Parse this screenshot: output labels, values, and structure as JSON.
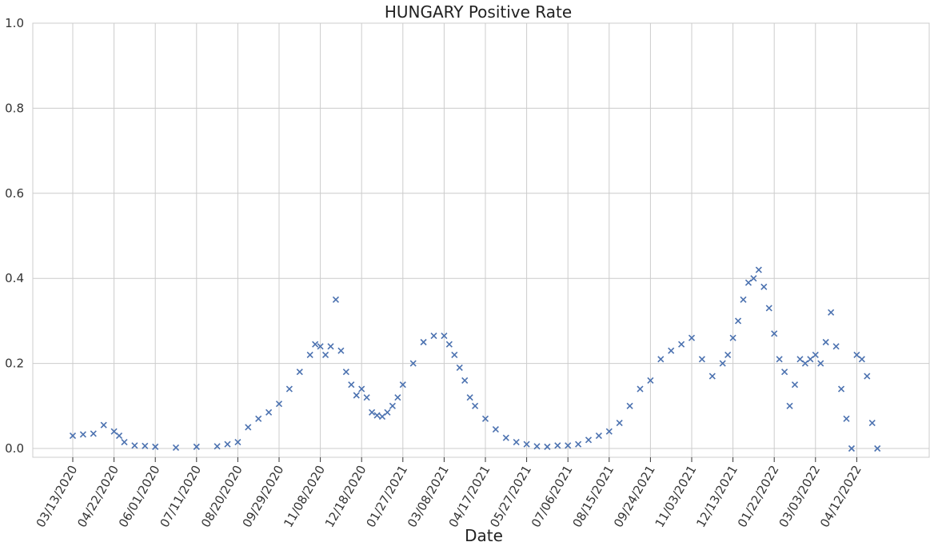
{
  "chart_data": {
    "type": "scatter",
    "title": "HUNGARY   Positive Rate",
    "xlabel": "Date",
    "ylabel": "",
    "ylim": [
      0,
      1.0
    ],
    "yticks": [
      "0.0",
      "0.2",
      "0.4",
      "0.6",
      "0.8",
      "1.0"
    ],
    "xticks": [
      "03/13/2020",
      "04/22/2020",
      "06/01/2020",
      "07/11/2020",
      "08/20/2020",
      "09/29/2020",
      "11/08/2020",
      "12/18/2020",
      "01/27/2021",
      "03/08/2021",
      "04/17/2021",
      "05/27/2021",
      "07/06/2021",
      "08/15/2021",
      "09/24/2021",
      "11/03/2021",
      "12/13/2021",
      "01/22/2022",
      "03/03/2022",
      "04/12/2022"
    ],
    "grid": true,
    "marker": "x",
    "color": "#4c72b0",
    "x": [
      "03/13/2020",
      "03/23/2020",
      "04/02/2020",
      "04/12/2020",
      "04/22/2020",
      "04/27/2020",
      "05/02/2020",
      "05/12/2020",
      "05/22/2020",
      "06/01/2020",
      "06/21/2020",
      "07/11/2020",
      "07/31/2020",
      "08/10/2020",
      "08/20/2020",
      "08/30/2020",
      "09/09/2020",
      "09/19/2020",
      "09/29/2020",
      "10/09/2020",
      "10/19/2020",
      "10/29/2020",
      "11/03/2020",
      "11/08/2020",
      "11/13/2020",
      "11/18/2020",
      "11/23/2020",
      "11/28/2020",
      "12/03/2020",
      "12/08/2020",
      "12/13/2020",
      "12/18/2020",
      "12/23/2020",
      "12/28/2020",
      "01/02/2021",
      "01/07/2021",
      "01/12/2021",
      "01/17/2021",
      "01/22/2021",
      "01/27/2021",
      "02/06/2021",
      "02/16/2021",
      "02/26/2021",
      "03/08/2021",
      "03/13/2021",
      "03/18/2021",
      "03/23/2021",
      "03/28/2021",
      "04/02/2021",
      "04/07/2021",
      "04/17/2021",
      "04/27/2021",
      "05/07/2021",
      "05/17/2021",
      "05/27/2021",
      "06/06/2021",
      "06/16/2021",
      "06/26/2021",
      "07/06/2021",
      "07/16/2021",
      "07/26/2021",
      "08/05/2021",
      "08/15/2021",
      "08/25/2021",
      "09/04/2021",
      "09/14/2021",
      "09/24/2021",
      "10/04/2021",
      "10/14/2021",
      "10/24/2021",
      "11/03/2021",
      "11/13/2021",
      "11/23/2021",
      "12/03/2021",
      "12/08/2021",
      "12/13/2021",
      "12/18/2021",
      "12/23/2021",
      "12/28/2021",
      "01/02/2022",
      "01/07/2022",
      "01/12/2022",
      "01/17/2022",
      "01/22/2022",
      "01/27/2022",
      "02/01/2022",
      "02/06/2022",
      "02/11/2022",
      "02/16/2022",
      "02/21/2022",
      "02/26/2022",
      "03/03/2022",
      "03/08/2022",
      "03/13/2022",
      "03/18/2022",
      "03/23/2022",
      "03/28/2022",
      "04/02/2022",
      "04/07/2022",
      "04/12/2022",
      "04/17/2022",
      "04/22/2022",
      "04/27/2022",
      "05/02/2022"
    ],
    "y": [
      0.03,
      0.033,
      0.035,
      0.055,
      0.04,
      0.03,
      0.015,
      0.007,
      0.006,
      0.004,
      0.002,
      0.004,
      0.005,
      0.01,
      0.015,
      0.05,
      0.07,
      0.085,
      0.105,
      0.14,
      0.18,
      0.22,
      0.245,
      0.24,
      0.22,
      0.24,
      0.35,
      0.23,
      0.18,
      0.15,
      0.125,
      0.14,
      0.12,
      0.085,
      0.078,
      0.075,
      0.085,
      0.1,
      0.12,
      0.15,
      0.2,
      0.25,
      0.265,
      0.265,
      0.245,
      0.22,
      0.19,
      0.16,
      0.12,
      0.1,
      0.07,
      0.045,
      0.025,
      0.015,
      0.01,
      0.005,
      0.004,
      0.007,
      0.007,
      0.01,
      0.02,
      0.03,
      0.04,
      0.06,
      0.1,
      0.14,
      0.16,
      0.21,
      0.23,
      0.245,
      0.26,
      0.21,
      0.17,
      0.2,
      0.22,
      0.26,
      0.3,
      0.35,
      0.39,
      0.4,
      0.42,
      0.38,
      0.33,
      0.27,
      0.21,
      0.18,
      0.1,
      0.15,
      0.21,
      0.2,
      0.21,
      0.22,
      0.2,
      0.25,
      0.32,
      0.24,
      0.14,
      0.07,
      0.0,
      0.22,
      0.21,
      0.17,
      0.06,
      0.0
    ]
  }
}
